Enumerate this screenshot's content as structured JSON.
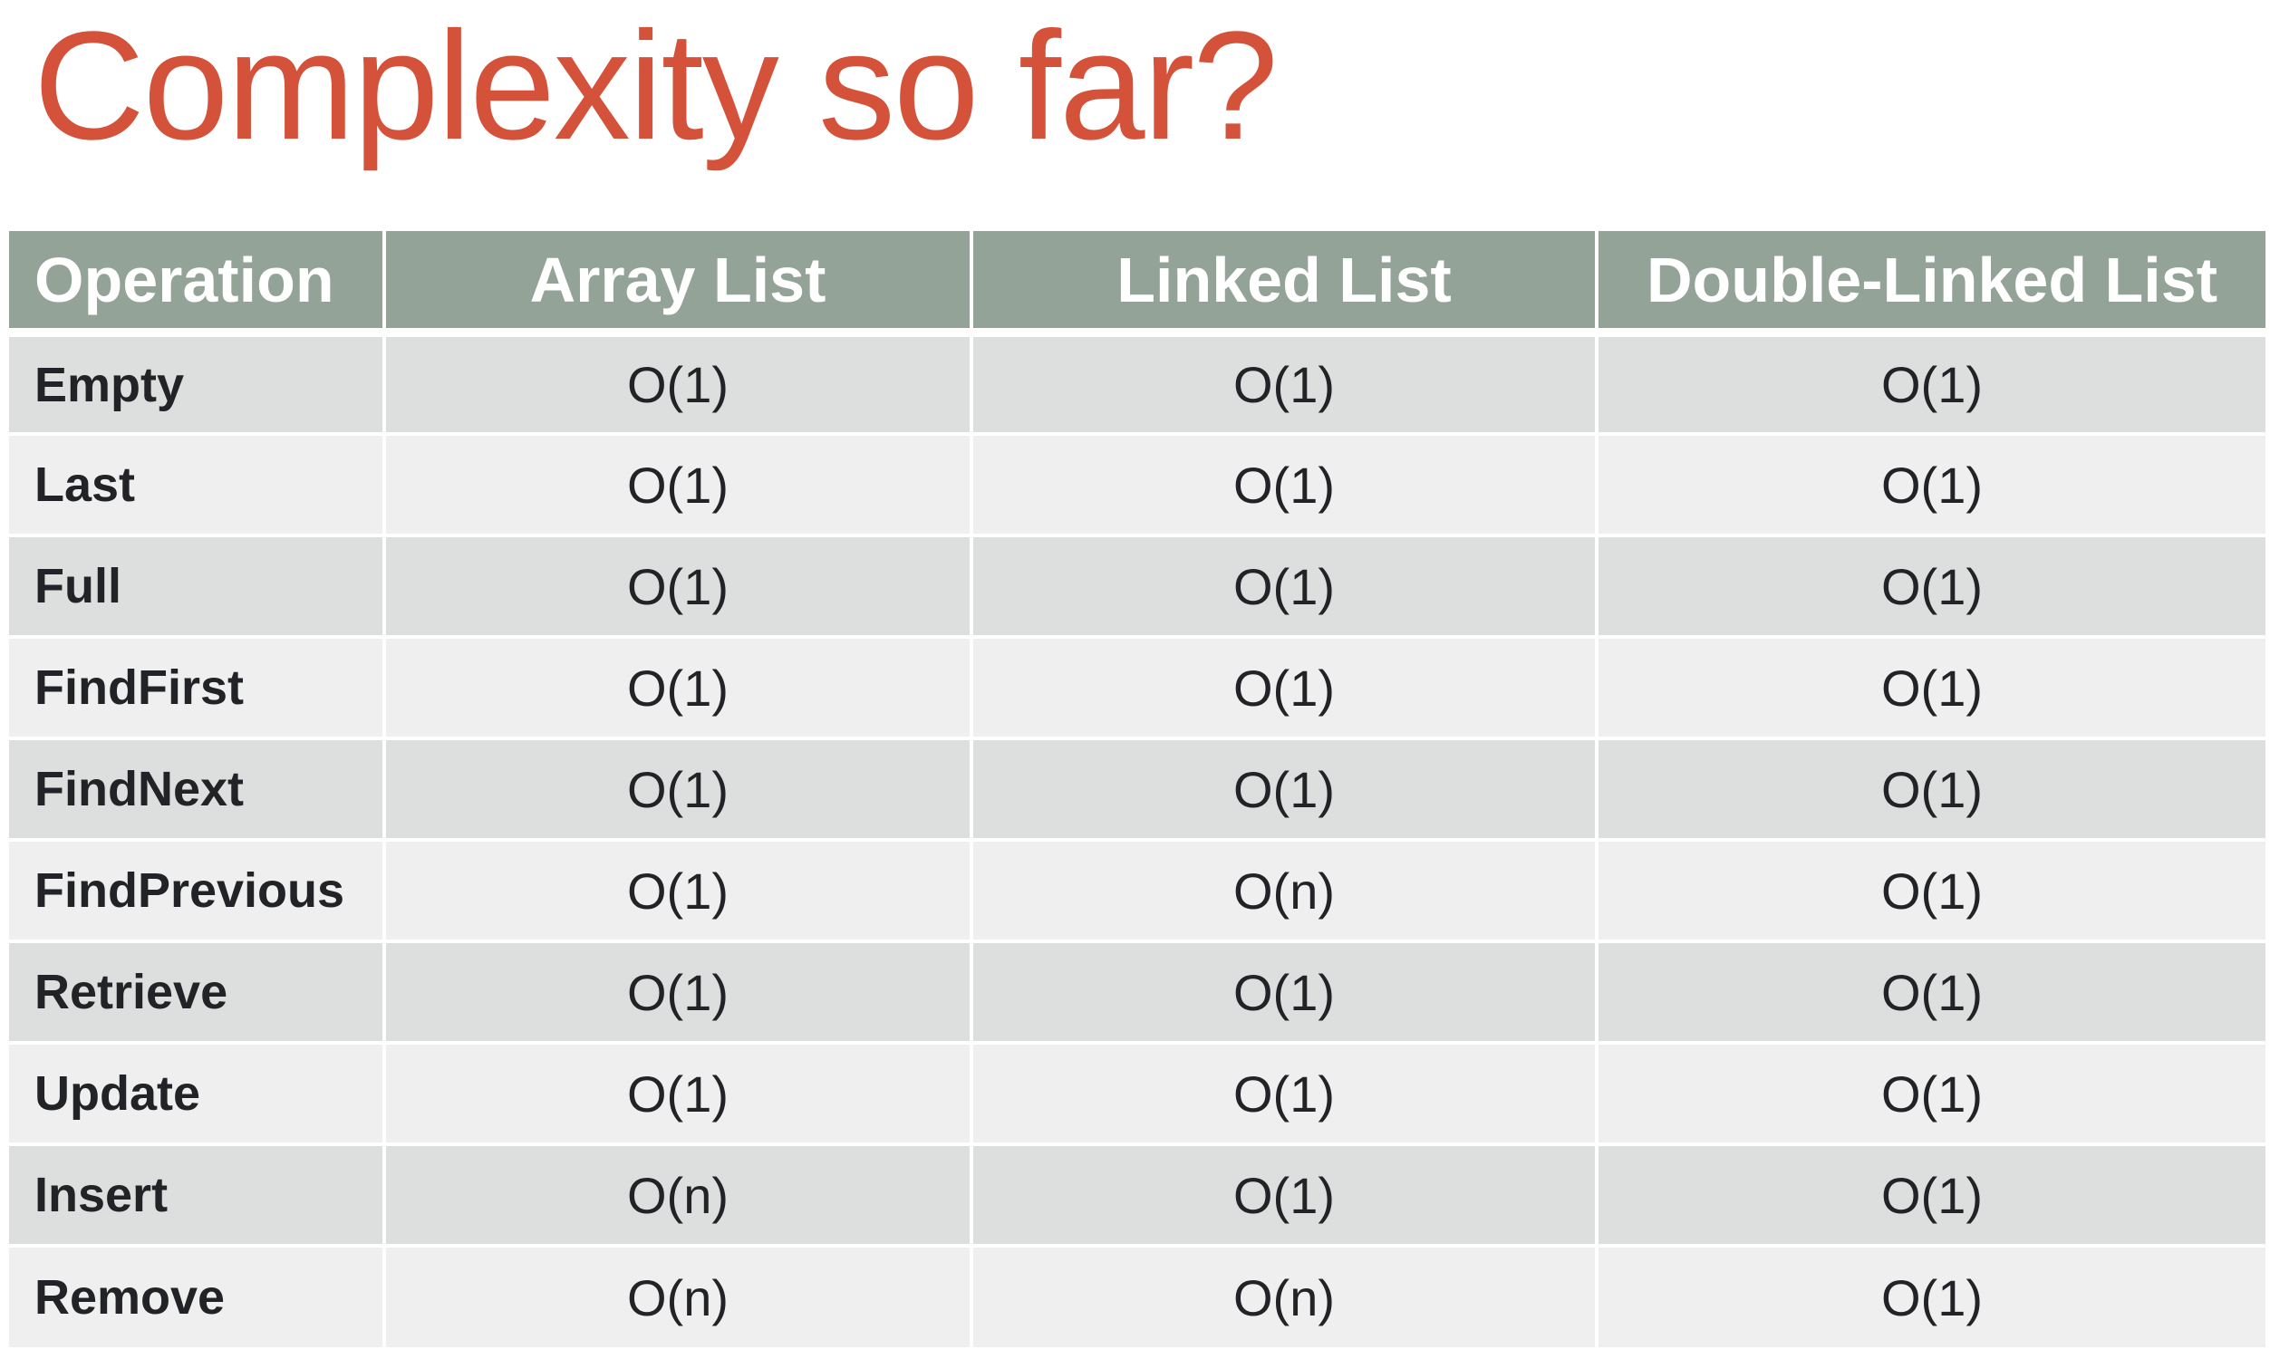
{
  "slide": {
    "title": "Complexity so far?"
  },
  "table": {
    "headers": [
      "Operation",
      "Array List",
      "Linked List",
      "Double-Linked List"
    ],
    "rows": [
      {
        "operation": "Empty",
        "array_list": "O(1)",
        "linked_list": "O(1)",
        "double_linked_list": "O(1)"
      },
      {
        "operation": "Last",
        "array_list": "O(1)",
        "linked_list": "O(1)",
        "double_linked_list": "O(1)"
      },
      {
        "operation": "Full",
        "array_list": "O(1)",
        "linked_list": "O(1)",
        "double_linked_list": "O(1)"
      },
      {
        "operation": "FindFirst",
        "array_list": "O(1)",
        "linked_list": "O(1)",
        "double_linked_list": "O(1)"
      },
      {
        "operation": "FindNext",
        "array_list": "O(1)",
        "linked_list": "O(1)",
        "double_linked_list": "O(1)"
      },
      {
        "operation": "FindPrevious",
        "array_list": "O(1)",
        "linked_list": "O(n)",
        "double_linked_list": "O(1)"
      },
      {
        "operation": "Retrieve",
        "array_list": "O(1)",
        "linked_list": "O(1)",
        "double_linked_list": "O(1)"
      },
      {
        "operation": "Update",
        "array_list": "O(1)",
        "linked_list": "O(1)",
        "double_linked_list": "O(1)"
      },
      {
        "operation": "Insert",
        "array_list": "O(n)",
        "linked_list": "O(1)",
        "double_linked_list": "O(1)"
      },
      {
        "operation": "Remove",
        "array_list": "O(n)",
        "linked_list": "O(n)",
        "double_linked_list": "O(1)"
      }
    ]
  },
  "colors": {
    "title": "#d4513a",
    "header_background": "#93a398",
    "header_text": "#ffffff",
    "row_band_dark": "#dcdfde",
    "row_band_light": "#eeefee",
    "cell_text": "#222326"
  }
}
